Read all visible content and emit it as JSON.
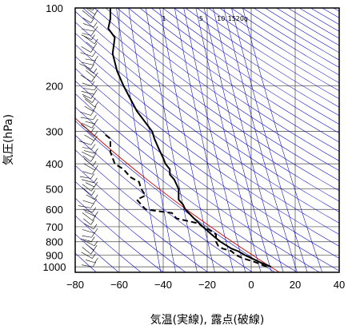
{
  "chart_data": {
    "type": "line",
    "subtype": "emagram",
    "xlabel": "気温(実線), 露点(破線)",
    "ylabel": "気圧(hPa)",
    "xlim": [
      -80,
      40
    ],
    "ylim": [
      1050,
      100
    ],
    "yscale": "log",
    "x_ticks": [
      -80,
      -60,
      -40,
      -20,
      0,
      20,
      40
    ],
    "x_tick_labels": [
      "−80",
      "−60",
      "−40",
      "−20",
      "0",
      "20",
      "40"
    ],
    "y_ticks": [
      100,
      200,
      300,
      400,
      500,
      600,
      700,
      800,
      900,
      1000
    ],
    "y_tick_labels": [
      "100",
      "200",
      "300",
      "400",
      "500",
      "600",
      "700",
      "800",
      "900",
      "1000"
    ],
    "mixing_ratio_labels": [
      "1",
      "5",
      "10",
      "15",
      "20g"
    ],
    "grid": true,
    "series": [
      {
        "style": "solid",
        "color": "#000000",
        "pressure": [
          1000,
          960,
          925,
          900,
          870,
          850,
          800,
          750,
          700,
          650,
          600,
          575,
          550,
          500,
          460,
          440,
          420,
          400,
          380,
          350,
          320,
          300,
          250,
          200,
          175,
          150,
          130,
          120,
          110,
          100
        ],
        "temperature": [
          9,
          4,
          0,
          -3,
          -6,
          -9,
          -14,
          -18,
          -22,
          -26,
          -30,
          -31,
          -33,
          -33,
          -35,
          -37,
          -37,
          -39,
          -40,
          -42,
          -44,
          -45,
          -52,
          -58,
          -61,
          -63,
          -62,
          -65,
          -64,
          -64
        ]
      },
      {
        "style": "dashed",
        "color": "#000000",
        "pressure": [
          1000,
          960,
          925,
          900,
          870,
          850,
          830,
          800,
          770,
          750,
          720,
          700,
          680,
          650,
          620,
          600,
          575,
          550,
          530,
          500,
          470,
          450,
          420,
          400,
          380,
          360,
          340,
          320,
          310,
          300
        ],
        "temperature": [
          7,
          2,
          -4,
          -7,
          -9,
          -13,
          -15,
          -16,
          -16,
          -16,
          -19,
          -22,
          -24,
          -34,
          -36,
          -48,
          -50,
          -52,
          -48,
          -50,
          -51,
          -55,
          -58,
          -62,
          -63,
          -64,
          -64,
          -64,
          -66,
          -67
        ]
      }
    ],
    "reference_lines": {
      "dry_adiabats_color": "#0000cc",
      "mixing_ratio_lines_color": "#0000cc",
      "special_line_color": "#cc0000"
    }
  }
}
